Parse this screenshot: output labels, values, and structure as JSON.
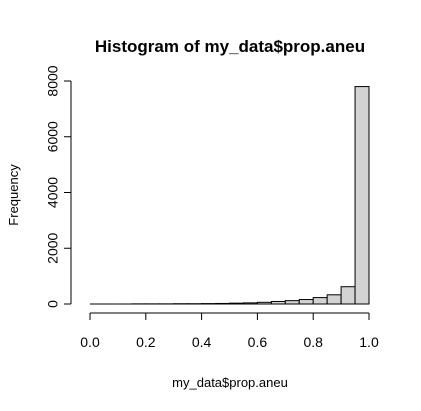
{
  "chart_data": {
    "type": "bar",
    "title": "Histogram of my_data$prop.aneu",
    "xlabel": "my_data$prop.aneu",
    "ylabel": "Frequency",
    "xlim": [
      0,
      1
    ],
    "ylim": [
      0,
      8000
    ],
    "x_ticks": [
      0.0,
      0.2,
      0.4,
      0.6,
      0.8,
      1.0
    ],
    "x_tick_labels": [
      "0.0",
      "0.2",
      "0.4",
      "0.6",
      "0.8",
      "1.0"
    ],
    "y_ticks": [
      0,
      2000,
      4000,
      6000,
      8000
    ],
    "y_tick_labels": [
      "0",
      "2000",
      "4000",
      "6000",
      "8000"
    ],
    "bin_edges": [
      0.0,
      0.05,
      0.1,
      0.15,
      0.2,
      0.25,
      0.3,
      0.35,
      0.4,
      0.45,
      0.5,
      0.55,
      0.6,
      0.65,
      0.7,
      0.75,
      0.8,
      0.85,
      0.9,
      0.95,
      1.0
    ],
    "values": [
      0,
      0,
      0,
      5,
      5,
      5,
      10,
      10,
      15,
      20,
      30,
      40,
      60,
      90,
      120,
      160,
      230,
      330,
      620,
      7800
    ],
    "grid": false
  }
}
